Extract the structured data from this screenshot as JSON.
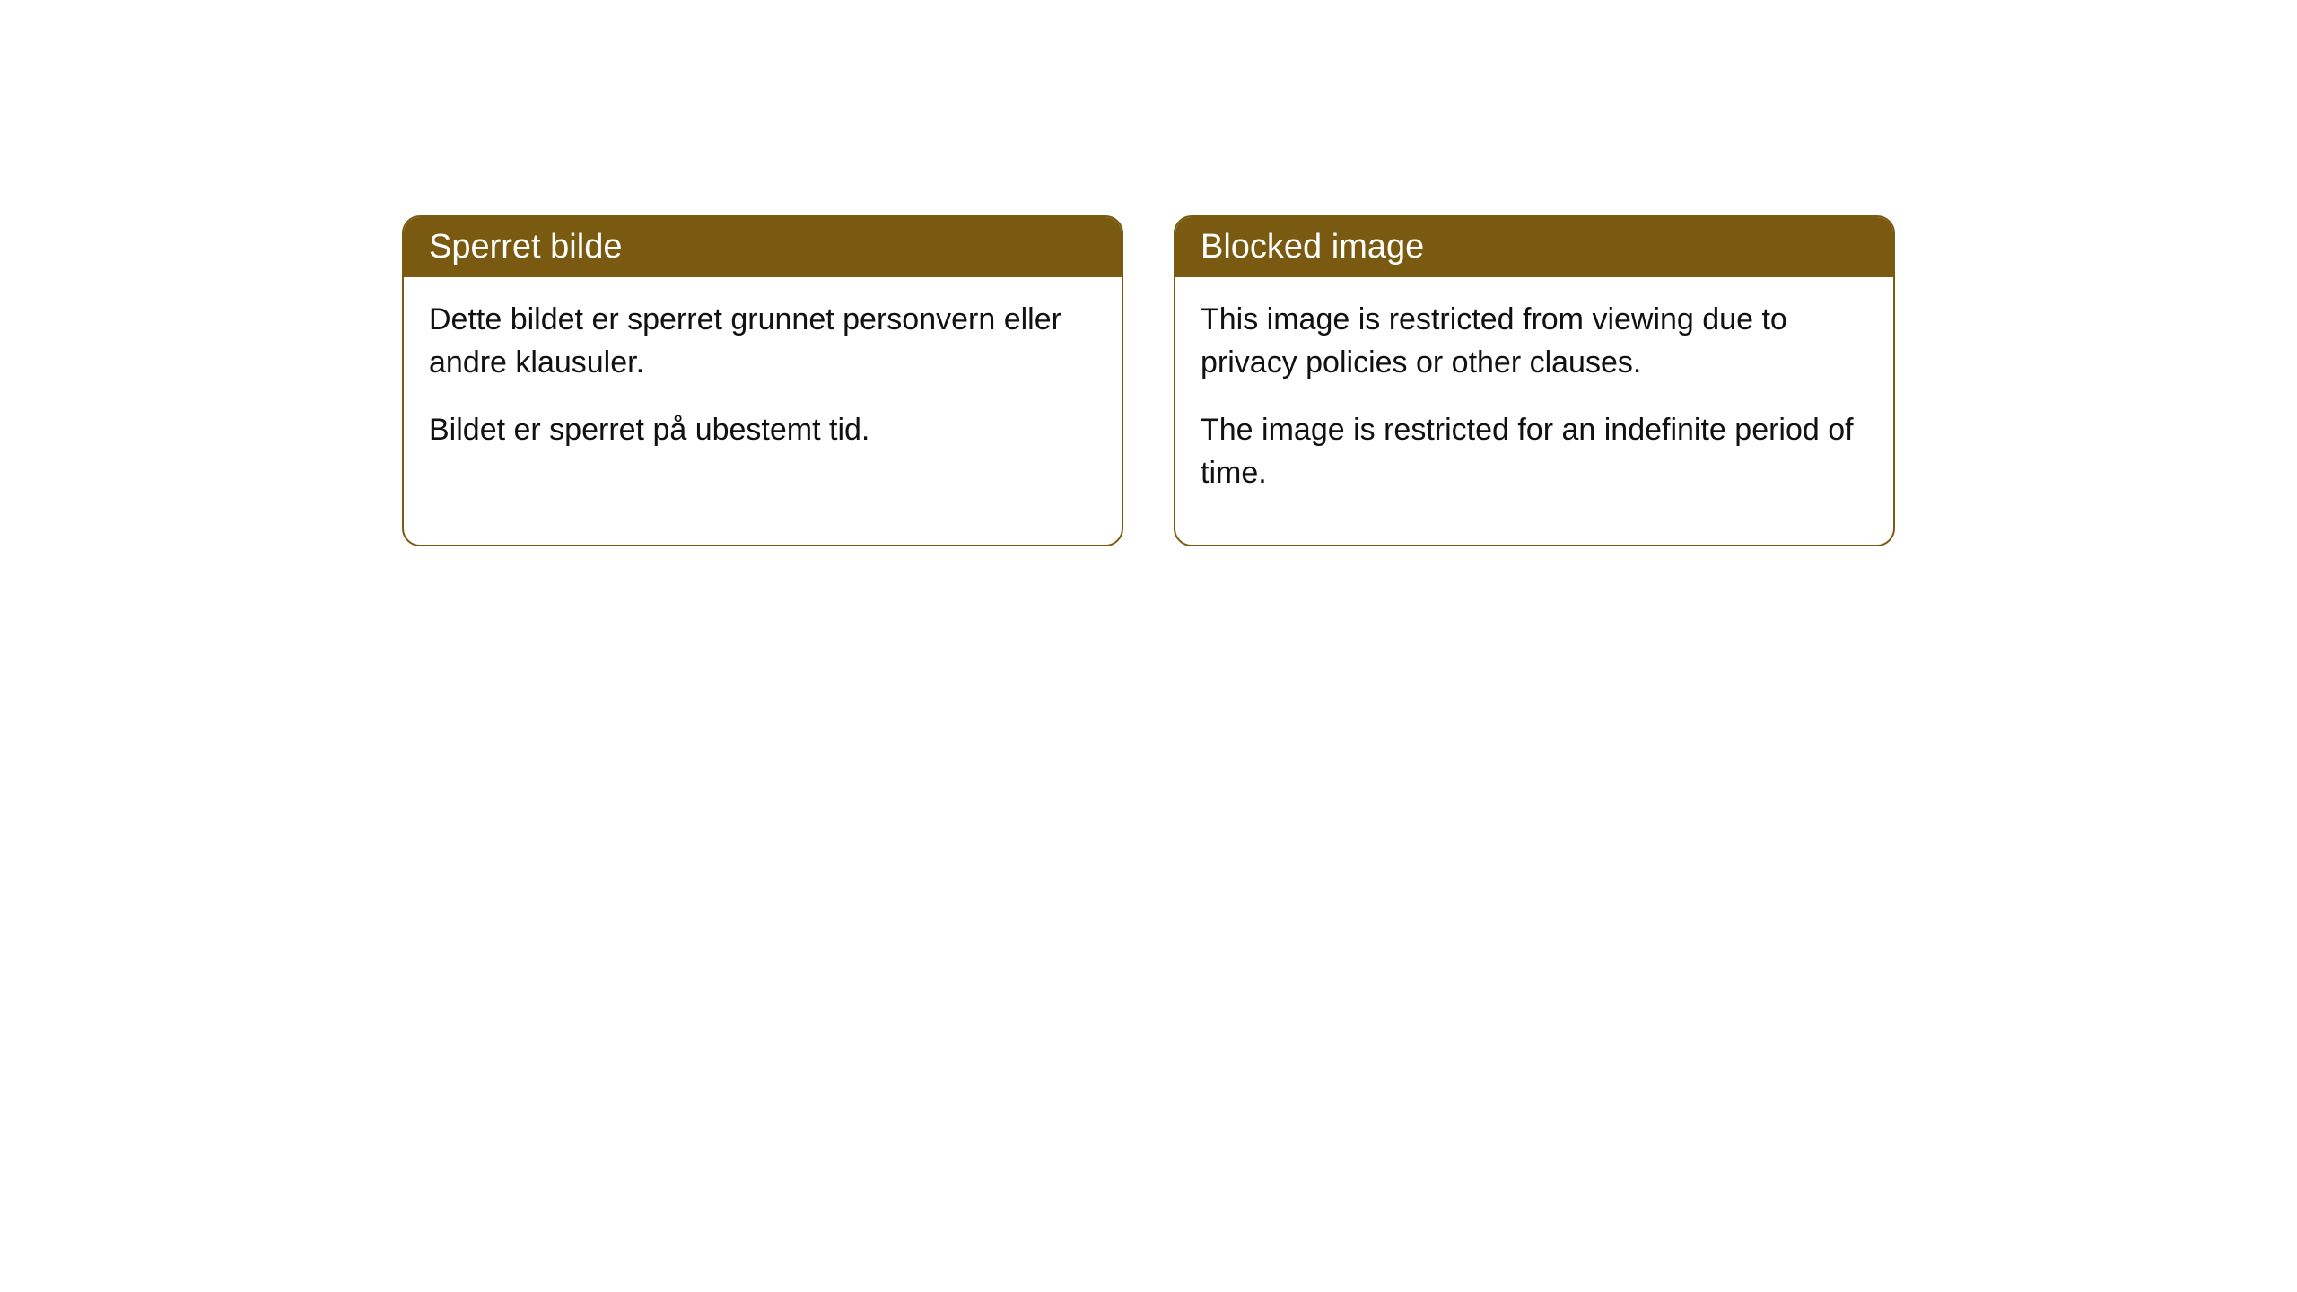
{
  "cards": [
    {
      "title": "Sperret bilde",
      "paragraph1": "Dette bildet er sperret grunnet personvern eller andre klausuler.",
      "paragraph2": "Bildet er sperret på ubestemt tid."
    },
    {
      "title": "Blocked image",
      "paragraph1": "This image is restricted from viewing due to privacy policies or other clauses.",
      "paragraph2": "The image is restricted for an indefinite period of time."
    }
  ],
  "styling": {
    "header_background": "#7a5a10",
    "header_text_color": "#ffffff",
    "border_color": "#7a5a10",
    "border_radius": 20,
    "body_background": "#ffffff",
    "body_text_color": "#111111",
    "title_fontsize": 38,
    "body_fontsize": 34,
    "card_gap": 56,
    "page_background": "#ffffff"
  }
}
